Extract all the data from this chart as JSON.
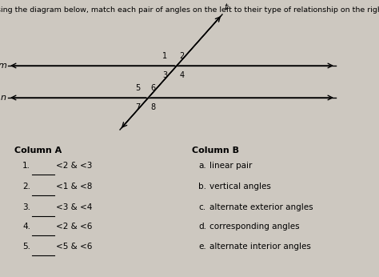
{
  "title": "Using the diagram below, match each pair of angles on the left to their type of relationship on the right.",
  "title_fontsize": 6.8,
  "bg_color": "#cdc8c0",
  "line_color": "#000000",
  "text_color": "#000000",
  "col_a_header": "Column A",
  "col_b_header": "Column B",
  "col_a_items": [
    {
      "num": "1.",
      "angle": "<2 & <3"
    },
    {
      "num": "2.",
      "angle": "<1 & <8"
    },
    {
      "num": "3.",
      "angle": "<3 & <4"
    },
    {
      "num": "4.",
      "angle": "<2 & <6"
    },
    {
      "num": "5.",
      "angle": "<5 & <6"
    }
  ],
  "col_b_items": [
    {
      "letter": "a.",
      "desc": "linear pair"
    },
    {
      "letter": "b.",
      "desc": "vertical angles"
    },
    {
      "letter": "c.",
      "desc": "alternate exterior angles"
    },
    {
      "letter": "d.",
      "desc": "corresponding angles"
    },
    {
      "letter": "e.",
      "desc": "alternate interior angles"
    }
  ]
}
